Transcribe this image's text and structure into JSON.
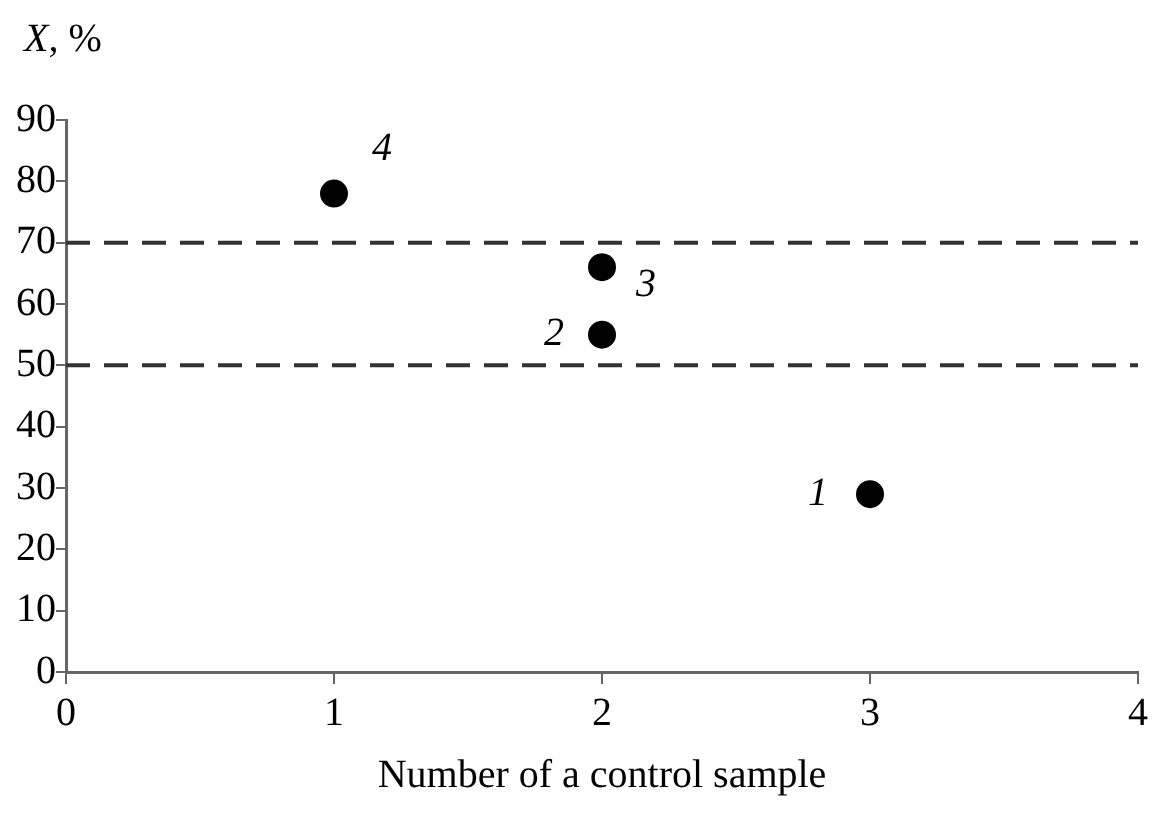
{
  "chart_data": {
    "type": "scatter",
    "xlabel": "Number of a control sample",
    "ylabel": "X, %",
    "x": [
      3,
      2,
      2,
      1
    ],
    "series": [
      {
        "color": "#000000",
        "values": [
          29,
          55,
          66,
          78
        ]
      }
    ],
    "xlim": [
      0,
      4
    ],
    "xticks": [
      0,
      1,
      2,
      3,
      4
    ],
    "ylim": [
      0,
      90
    ],
    "yticks": [
      0,
      10,
      20,
      30,
      40,
      50,
      60,
      70,
      80,
      90
    ],
    "ref_lines": [
      {
        "axis": "y",
        "value": 50,
        "line_style": "dashed",
        "color": "#333333"
      },
      {
        "axis": "y",
        "value": 70,
        "line_style": "dashed",
        "color": "#333333"
      }
    ],
    "annotations": [
      {
        "text": "1",
        "x": 3,
        "y": 29
      },
      {
        "text": "2",
        "x": 2,
        "y": 55
      },
      {
        "text": "3",
        "x": 2,
        "y": 66
      },
      {
        "text": "4",
        "x": 1,
        "y": 78
      }
    ],
    "marker": "circle",
    "grid": false,
    "legend": false
  }
}
